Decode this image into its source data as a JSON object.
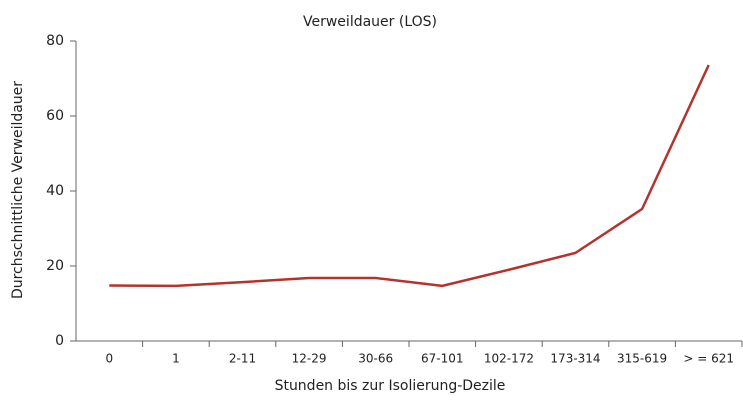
{
  "chart_data": {
    "type": "line",
    "title": "Verweildauer (LOS)",
    "x_label": "Stunden bis zur Isolierung-Dezile",
    "y_label": "Durchschnittliche Verweildauer",
    "categories": [
      "0",
      "1",
      "2-11",
      "12-29",
      "30-66",
      "67-101",
      "102-172",
      "173-314",
      "315-619",
      "> = 621"
    ],
    "values": [
      14.8,
      14.7,
      15.7,
      16.8,
      16.8,
      14.7,
      19,
      23.5,
      35.2,
      73.6
    ],
    "color": "#b5332e",
    "ylim": [
      0,
      80
    ],
    "yticks": [
      0,
      20,
      40,
      60,
      80
    ],
    "grid": false
  }
}
